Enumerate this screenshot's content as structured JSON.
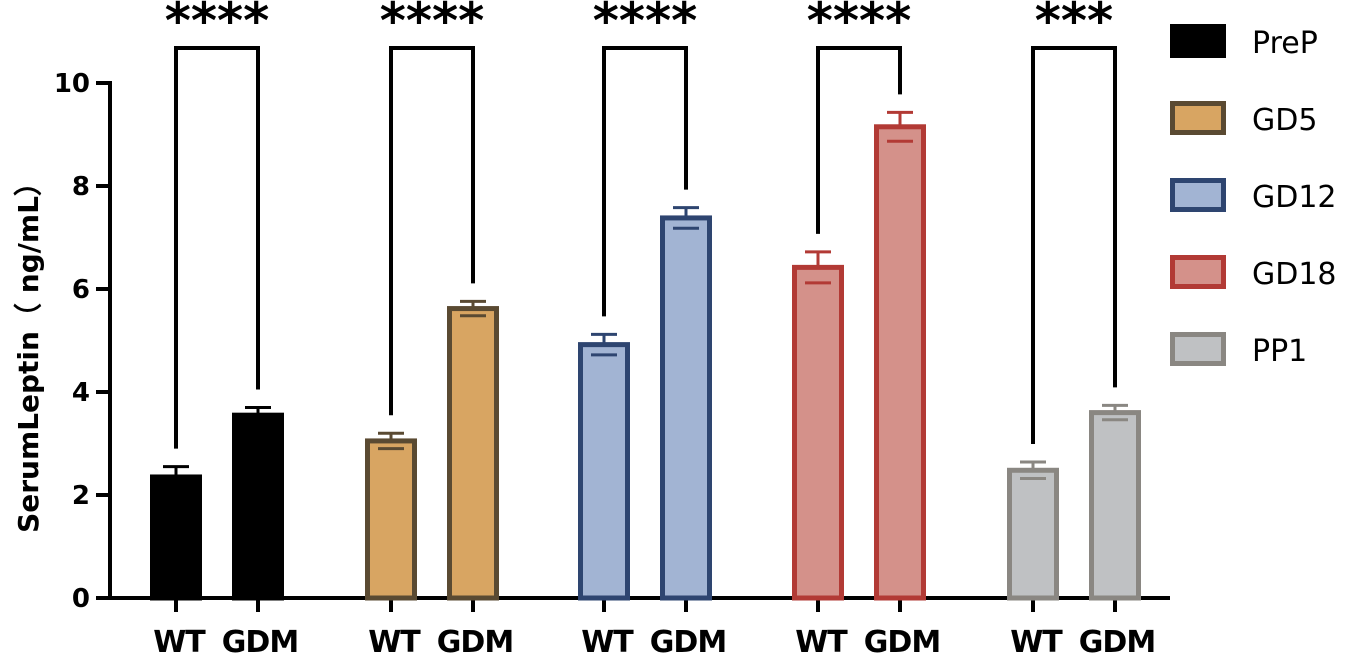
{
  "chart_data": {
    "type": "bar",
    "ylabel": "SerumLeptin（ ng/mL）",
    "ylim": [
      0,
      10
    ],
    "yticks": [
      0,
      2,
      4,
      6,
      8,
      10
    ],
    "bar_categories": [
      "WT",
      "GDM"
    ],
    "legend_position": "right",
    "series": [
      {
        "name": "PreP",
        "fill": "#000000",
        "stroke": "#000000",
        "values": [
          2.35,
          3.55
        ],
        "errors": [
          0.2,
          0.15
        ],
        "significance": "****"
      },
      {
        "name": "GD5",
        "fill": "#D8A562",
        "stroke": "#5A4A32",
        "values": [
          3.05,
          5.62
        ],
        "errors": [
          0.15,
          0.14
        ],
        "significance": "****"
      },
      {
        "name": "GD12",
        "fill": "#A2B4D3",
        "stroke": "#2E4570",
        "values": [
          4.92,
          7.38
        ],
        "errors": [
          0.2,
          0.2
        ],
        "significance": "****"
      },
      {
        "name": "GD18",
        "fill": "#D4918A",
        "stroke": "#B23A35",
        "values": [
          6.42,
          9.15
        ],
        "errors": [
          0.3,
          0.28
        ],
        "significance": "****"
      },
      {
        "name": "PP1",
        "fill": "#BFC1C3",
        "stroke": "#8A8782",
        "values": [
          2.48,
          3.6
        ],
        "errors": [
          0.16,
          0.14
        ],
        "significance": "***"
      }
    ]
  }
}
